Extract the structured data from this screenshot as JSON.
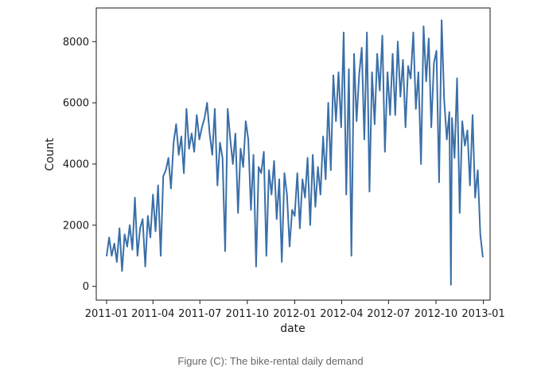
{
  "caption": "Figure (C): The bike-rental daily demand",
  "chart_data": {
    "type": "line",
    "title": "",
    "xlabel": "date",
    "ylabel": "Count",
    "x_range": [
      "2010-12-12",
      "2013-01-14"
    ],
    "ylim": [
      -450,
      9100
    ],
    "x_ticks": [
      "2011-01",
      "2011-04",
      "2011-07",
      "2011-10",
      "2012-01",
      "2012-04",
      "2012-07",
      "2012-10",
      "2013-01"
    ],
    "y_ticks": [
      0,
      2000,
      4000,
      6000,
      8000
    ],
    "grid": false,
    "legend": "none",
    "colors": {
      "line": "#3a6fa8",
      "axes": "#1a1a1a"
    },
    "series": [
      {
        "x": [
          "2011-01-01",
          "2011-01-06",
          "2011-01-11",
          "2011-01-16",
          "2011-01-21",
          "2011-01-26",
          "2011-01-31",
          "2011-02-05",
          "2011-02-10",
          "2011-02-15",
          "2011-02-20",
          "2011-02-25",
          "2011-03-02",
          "2011-03-07",
          "2011-03-12",
          "2011-03-17",
          "2011-03-22",
          "2011-03-27",
          "2011-04-01",
          "2011-04-06",
          "2011-04-11",
          "2011-04-16",
          "2011-04-21",
          "2011-04-26",
          "2011-05-01",
          "2011-05-06",
          "2011-05-11",
          "2011-05-16",
          "2011-05-21",
          "2011-05-26",
          "2011-05-31",
          "2011-06-05",
          "2011-06-10",
          "2011-06-15",
          "2011-06-20",
          "2011-06-25",
          "2011-06-30",
          "2011-07-05",
          "2011-07-10",
          "2011-07-15",
          "2011-07-20",
          "2011-07-25",
          "2011-07-30",
          "2011-08-04",
          "2011-08-09",
          "2011-08-14",
          "2011-08-19",
          "2011-08-24",
          "2011-08-29",
          "2011-09-03",
          "2011-09-08",
          "2011-09-13",
          "2011-09-18",
          "2011-09-23",
          "2011-09-28",
          "2011-10-03",
          "2011-10-08",
          "2011-10-13",
          "2011-10-18",
          "2011-10-23",
          "2011-10-28",
          "2011-11-02",
          "2011-11-07",
          "2011-11-12",
          "2011-11-17",
          "2011-11-22",
          "2011-11-27",
          "2011-12-02",
          "2011-12-07",
          "2011-12-12",
          "2011-12-17",
          "2011-12-22",
          "2011-12-27",
          "2012-01-01",
          "2012-01-06",
          "2012-01-11",
          "2012-01-16",
          "2012-01-21",
          "2012-01-26",
          "2012-01-31",
          "2012-02-05",
          "2012-02-10",
          "2012-02-15",
          "2012-02-20",
          "2012-02-25",
          "2012-03-01",
          "2012-03-06",
          "2012-03-11",
          "2012-03-16",
          "2012-03-21",
          "2012-03-26",
          "2012-03-31",
          "2012-04-05",
          "2012-04-10",
          "2012-04-15",
          "2012-04-20",
          "2012-04-25",
          "2012-04-30",
          "2012-05-05",
          "2012-05-10",
          "2012-05-15",
          "2012-05-20",
          "2012-05-25",
          "2012-05-30",
          "2012-06-04",
          "2012-06-09",
          "2012-06-14",
          "2012-06-19",
          "2012-06-24",
          "2012-06-29",
          "2012-07-04",
          "2012-07-09",
          "2012-07-14",
          "2012-07-19",
          "2012-07-24",
          "2012-07-29",
          "2012-08-03",
          "2012-08-08",
          "2012-08-13",
          "2012-08-18",
          "2012-08-23",
          "2012-08-28",
          "2012-09-02",
          "2012-09-07",
          "2012-09-12",
          "2012-09-17",
          "2012-09-22",
          "2012-09-27",
          "2012-10-02",
          "2012-10-07",
          "2012-10-12",
          "2012-10-17",
          "2012-10-22",
          "2012-10-27",
          "2012-10-30",
          "2012-11-01",
          "2012-11-06",
          "2012-11-11",
          "2012-11-16",
          "2012-11-21",
          "2012-11-26",
          "2012-12-01",
          "2012-12-06",
          "2012-12-11",
          "2012-12-16",
          "2012-12-21",
          "2012-12-26",
          "2012-12-31"
        ],
        "y": [
          985,
          1600,
          1000,
          1400,
          800,
          1900,
          500,
          1700,
          1300,
          2000,
          1200,
          2900,
          1000,
          1900,
          2200,
          650,
          2300,
          1600,
          3000,
          1800,
          3300,
          1000,
          3600,
          3800,
          4200,
          3200,
          4700,
          5300,
          4300,
          4900,
          3700,
          5800,
          4500,
          5000,
          4400,
          5600,
          4800,
          5200,
          5500,
          6000,
          5000,
          4300,
          5800,
          3300,
          4700,
          4200,
          1150,
          5800,
          4800,
          4000,
          5000,
          2400,
          4500,
          3900,
          5400,
          4800,
          2500,
          4300,
          650,
          3900,
          3700,
          4400,
          1000,
          3800,
          3000,
          4100,
          2200,
          3500,
          800,
          3700,
          3000,
          1300,
          2500,
          2300,
          3700,
          1900,
          3500,
          2900,
          4200,
          2000,
          4300,
          2600,
          3900,
          3000,
          4900,
          3500,
          6000,
          3800,
          6900,
          5400,
          7000,
          5200,
          8300,
          3000,
          7100,
          1000,
          7600,
          5400,
          6900,
          7800,
          4800,
          8300,
          3100,
          7000,
          5300,
          7600,
          6400,
          8200,
          4400,
          7000,
          5600,
          7600,
          5600,
          8000,
          6200,
          7400,
          5200,
          7200,
          6800,
          8300,
          5800,
          7000,
          4000,
          8500,
          6700,
          8100,
          5200,
          7300,
          7700,
          3400,
          8700,
          6100,
          4800,
          5700,
          50,
          5500,
          4200,
          6800,
          2400,
          5400,
          4600,
          5100,
          3300,
          5600,
          2900,
          3800,
          1700,
          950
        ]
      }
    ]
  }
}
